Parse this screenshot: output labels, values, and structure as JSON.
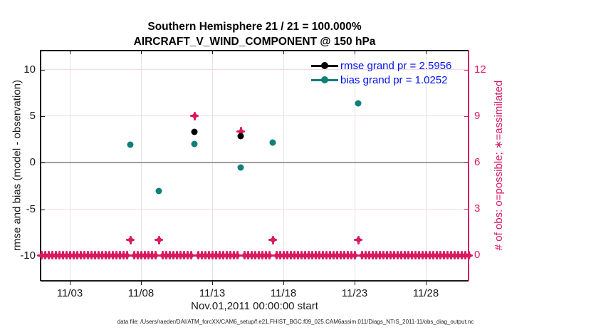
{
  "figure": {
    "title_line1": "Southern Hemisphere 21 / 21 = 100.000%",
    "title_line2": "AIRCRAFT_V_WIND_COMPONENT @ 150 hPa",
    "xlabel": "Nov.01,2011 00:00:00 start",
    "ylabel_left": "rmse and bias (model - observation)",
    "ylabel_right": "# of obs: o=possible; ∗=assimilated",
    "caption": "data file: /Users/raeder/DAI/ATM_forcXX/CAM6_setup/f.e21.FHIST_BGC.f09_025.CAM6assim.011/Diags_NTrS_2011-11/obs_diag_output.nc"
  },
  "legend": {
    "rmse_label": "rmse grand pr = 2.5956",
    "bias_label": "bias grand pr = 1.0252",
    "text_color": "#0013ee"
  },
  "colors": {
    "rmse": "#000000",
    "bias": "#0f7f77",
    "obs": "#d81b60",
    "grid_x": "#e3e3e3",
    "grid_y": "#f7d9e5",
    "zero_line": "#a39a9e",
    "axis": "#1a1a1a"
  },
  "chart_data": {
    "type": "scatter",
    "title": "Southern Hemisphere 21 / 21 = 100.000% — AIRCRAFT_V_WIND_COMPONENT @ 150 hPa",
    "x_axis": {
      "unit": "day of Nov 2011",
      "range_days": [
        1,
        31
      ],
      "ticks": [
        {
          "day": 3,
          "label": "11/03"
        },
        {
          "day": 8,
          "label": "11/08"
        },
        {
          "day": 13,
          "label": "11/13"
        },
        {
          "day": 18,
          "label": "11/18"
        },
        {
          "day": 23,
          "label": "11/23"
        },
        {
          "day": 28,
          "label": "11/28"
        }
      ]
    },
    "y_left": {
      "label": "rmse and bias (model - observation)",
      "ticks": [
        10,
        5,
        0,
        -5,
        -10
      ],
      "range": [
        -12.7,
        12.1
      ]
    },
    "y_right": {
      "label": "# of obs: o=possible; ∗=assimilated",
      "ticks": [
        12,
        9,
        6,
        3,
        0
      ],
      "range": [
        -1.7,
        13.3
      ]
    },
    "grand_rmse": 2.5956,
    "grand_bias": 1.0252,
    "series": [
      {
        "name": "rmse",
        "color_key": "rmse",
        "points": [
          {
            "day": 11.75,
            "value": 3.3
          },
          {
            "day": 15.0,
            "value": 2.85
          }
        ]
      },
      {
        "name": "bias",
        "color_key": "bias",
        "points": [
          {
            "day": 7.25,
            "value": 1.95
          },
          {
            "day": 9.25,
            "value": -3.05
          },
          {
            "day": 11.75,
            "value": 2.05
          },
          {
            "day": 15.0,
            "value": -0.5
          },
          {
            "day": 17.25,
            "value": 2.15
          },
          {
            "day": 23.25,
            "value": 6.4
          }
        ]
      }
    ],
    "obs_counts": {
      "elevated": [
        {
          "day": 7.25,
          "count": 1
        },
        {
          "day": 9.25,
          "count": 1
        },
        {
          "day": 11.75,
          "count": 9
        },
        {
          "day": 15.0,
          "count": 8
        },
        {
          "day": 17.25,
          "count": 1
        },
        {
          "day": 23.25,
          "count": 1
        }
      ],
      "zero_row": {
        "start_day": 1.0,
        "end_day": 31.0,
        "step_day": 0.25,
        "count": 0
      }
    }
  }
}
